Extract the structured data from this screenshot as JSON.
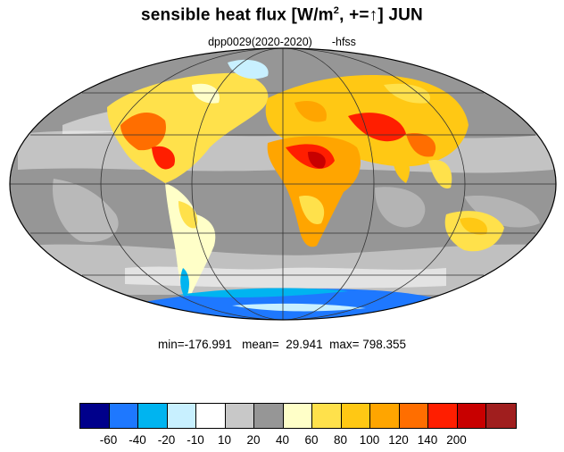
{
  "title": {
    "prefix": "sensible heat flux [W/m",
    "superscript": "2",
    "suffix": ", +=↑]  JUN"
  },
  "subtitle": {
    "run": "dpp0029(2020-2020)",
    "variable": "-hfss"
  },
  "stats": {
    "text": "min=-176.991   mean=  29.941  max= 798.355"
  },
  "colorbar": {
    "colors": [
      "#00008b",
      "#1e78ff",
      "#00b4f0",
      "#c8f0ff",
      "#ffffff",
      "#c8c8c8",
      "#969696",
      "#ffffc8",
      "#ffe14b",
      "#ffc814",
      "#ffa500",
      "#ff6e00",
      "#ff1e00",
      "#c80000",
      "#a01e1e"
    ],
    "tick_labels": [
      "-60",
      "-40",
      "-20",
      "-10",
      "10",
      "20",
      "40",
      "60",
      "80",
      "100",
      "120",
      "140",
      "200"
    ]
  },
  "map": {
    "projection": "mollweide",
    "ocean_color": "#969696",
    "grid_color": "#333333"
  }
}
